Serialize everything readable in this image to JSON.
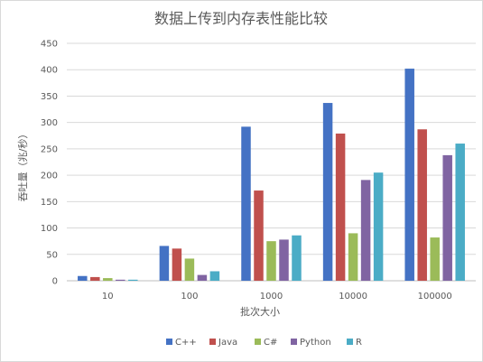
{
  "chart_data": {
    "type": "bar",
    "title": "数据上传到内存表性能比较",
    "xlabel": "批次大小",
    "ylabel": "吞吐量（兆/秒）",
    "categories": [
      "10",
      "100",
      "1000",
      "10000",
      "100000"
    ],
    "ylim": [
      0,
      450
    ],
    "ytick_step": 50,
    "grid": true,
    "legend_position": "bottom",
    "series": [
      {
        "name": "C++",
        "color": "#4472c4",
        "values": [
          9,
          66,
          292,
          337,
          402
        ]
      },
      {
        "name": "Java",
        "color": "#c0504d",
        "values": [
          7,
          61,
          171,
          279,
          287
        ]
      },
      {
        "name": "C#",
        "color": "#9bbb59",
        "values": [
          5,
          42,
          75,
          90,
          82
        ]
      },
      {
        "name": "Python",
        "color": "#8064a2",
        "values": [
          2,
          11,
          78,
          191,
          238
        ]
      },
      {
        "name": "R",
        "color": "#4bacc6",
        "values": [
          2,
          18,
          86,
          205,
          260
        ]
      }
    ]
  }
}
